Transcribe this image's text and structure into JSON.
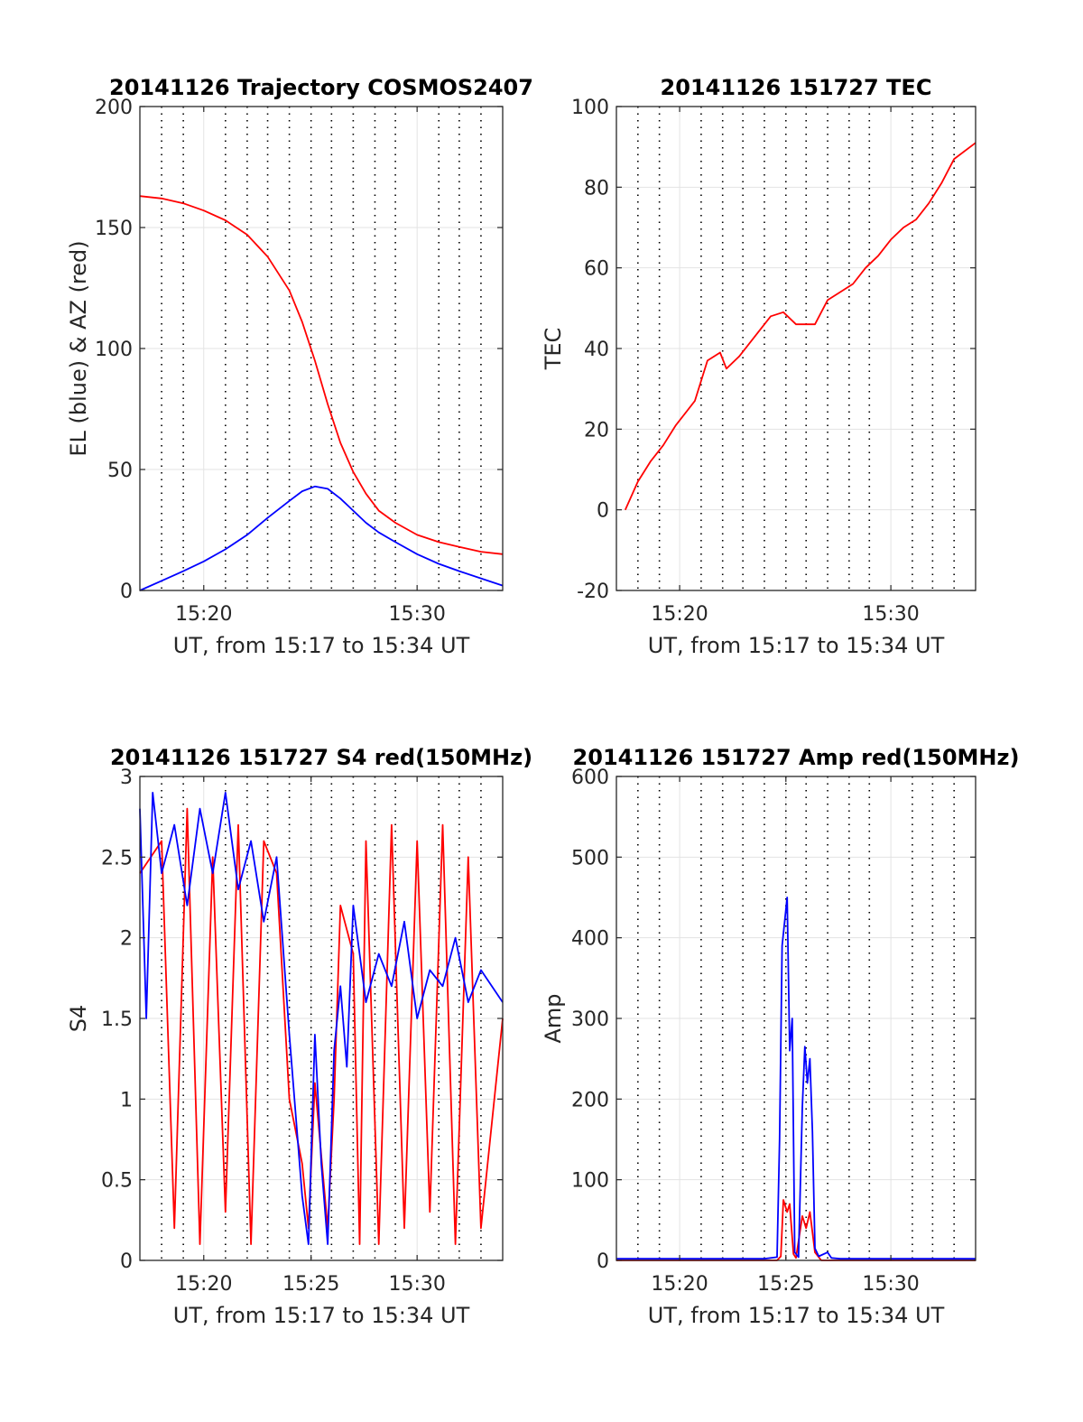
{
  "chart_data": [
    {
      "type": "line",
      "title": "20141126 Trajectory COSMOS2407",
      "xlabel": "UT, from 15:17 to 15:34 UT",
      "ylabel": "EL (blue) & AZ (red)",
      "xlim": [
        15.283,
        15.567
      ],
      "ylim": [
        0,
        200
      ],
      "xticks": [
        {
          "v": 15.333,
          "label": "15:20"
        },
        {
          "v": 15.5,
          "label": "15:30"
        }
      ],
      "yticks": [
        0,
        50,
        100,
        150,
        200
      ],
      "grid": true,
      "series": [
        {
          "color": "#ff0000",
          "x": [
            15.283,
            15.3,
            15.317,
            15.333,
            15.35,
            15.367,
            15.383,
            15.4,
            15.41,
            15.42,
            15.43,
            15.44,
            15.45,
            15.46,
            15.47,
            15.483,
            15.5,
            15.517,
            15.533,
            15.55,
            15.567
          ],
          "y": [
            163,
            162,
            160,
            157,
            153,
            147,
            138,
            124,
            111,
            95,
            77,
            61,
            49,
            40,
            33,
            28,
            23,
            20,
            18,
            16,
            15
          ]
        },
        {
          "color": "#0000ff",
          "x": [
            15.283,
            15.3,
            15.317,
            15.333,
            15.35,
            15.367,
            15.383,
            15.4,
            15.41,
            15.42,
            15.43,
            15.44,
            15.45,
            15.46,
            15.47,
            15.483,
            15.5,
            15.517,
            15.533,
            15.55,
            15.567
          ],
          "y": [
            0,
            4,
            8,
            12,
            17,
            23,
            30,
            37,
            41,
            43,
            42,
            38,
            33,
            28,
            24,
            20,
            15,
            11,
            8,
            5,
            2
          ]
        }
      ]
    },
    {
      "type": "line",
      "title": "20141126 151727 TEC",
      "xlabel": "UT, from 15:17 to 15:34 UT",
      "ylabel": "TEC",
      "xlim": [
        15.283,
        15.567
      ],
      "ylim": [
        -20,
        100
      ],
      "xticks": [
        {
          "v": 15.333,
          "label": "15:20"
        },
        {
          "v": 15.5,
          "label": "15:30"
        }
      ],
      "yticks": [
        -20,
        0,
        20,
        40,
        60,
        80,
        100
      ],
      "grid": true,
      "series": [
        {
          "color": "#ff0000",
          "x": [
            15.29,
            15.3,
            15.31,
            15.32,
            15.33,
            15.345,
            15.355,
            15.365,
            15.37,
            15.38,
            15.395,
            15.405,
            15.415,
            15.425,
            15.44,
            15.45,
            15.46,
            15.47,
            15.48,
            15.49,
            15.5,
            15.51,
            15.52,
            15.53,
            15.54,
            15.55,
            15.567
          ],
          "y": [
            0,
            7,
            12,
            16,
            21,
            27,
            37,
            39,
            35,
            38,
            44,
            48,
            49,
            46,
            46,
            52,
            54,
            56,
            60,
            63,
            67,
            70,
            72,
            76,
            81,
            87,
            91
          ]
        }
      ]
    },
    {
      "type": "line",
      "title": "20141126 151727 S4 red(150MHz)",
      "xlabel": "UT, from 15:17 to 15:34 UT",
      "ylabel": "S4",
      "xlim": [
        15.283,
        15.567
      ],
      "ylim": [
        0,
        3
      ],
      "xticks": [
        {
          "v": 15.333,
          "label": "15:20"
        },
        {
          "v": 15.417,
          "label": "15:25"
        },
        {
          "v": 15.5,
          "label": "15:30"
        }
      ],
      "yticks": [
        0,
        0.5,
        1,
        1.5,
        2,
        2.5,
        3
      ],
      "yticklabels": [
        "0",
        "0.5",
        "1",
        "1.5",
        "2",
        "2.5",
        "3"
      ],
      "grid": true,
      "series": [
        {
          "color": "#ff0000",
          "x": [
            15.283,
            15.3,
            15.31,
            15.32,
            15.33,
            15.34,
            15.35,
            15.36,
            15.37,
            15.38,
            15.39,
            15.4,
            15.41,
            15.415,
            15.42,
            15.43,
            15.435,
            15.44,
            15.45,
            15.455,
            15.46,
            15.47,
            15.48,
            15.49,
            15.5,
            15.51,
            15.52,
            15.53,
            15.54,
            15.55,
            15.567
          ],
          "y": [
            2.4,
            2.6,
            0.2,
            2.8,
            0.1,
            2.5,
            0.3,
            2.7,
            0.1,
            2.6,
            2.4,
            1.0,
            0.6,
            0.2,
            1.1,
            0.2,
            1.0,
            2.2,
            1.9,
            0.1,
            2.6,
            0.1,
            2.7,
            0.2,
            2.6,
            0.3,
            2.7,
            0.1,
            2.5,
            0.2,
            1.5
          ]
        },
        {
          "color": "#0000ff",
          "x": [
            15.283,
            15.288,
            15.293,
            15.3,
            15.31,
            15.32,
            15.33,
            15.34,
            15.35,
            15.36,
            15.37,
            15.38,
            15.39,
            15.4,
            15.405,
            15.41,
            15.415,
            15.42,
            15.425,
            15.43,
            15.435,
            15.44,
            15.445,
            15.45,
            15.46,
            15.47,
            15.48,
            15.49,
            15.5,
            15.51,
            15.52,
            15.53,
            15.54,
            15.55,
            15.567
          ],
          "y": [
            2.8,
            1.5,
            2.9,
            2.4,
            2.7,
            2.2,
            2.8,
            2.4,
            2.9,
            2.3,
            2.6,
            2.1,
            2.5,
            1.4,
            0.9,
            0.4,
            0.1,
            1.4,
            0.6,
            0.1,
            1.3,
            1.7,
            1.2,
            2.2,
            1.6,
            1.9,
            1.7,
            2.1,
            1.5,
            1.8,
            1.7,
            2.0,
            1.6,
            1.8,
            1.6
          ]
        }
      ]
    },
    {
      "type": "line",
      "title": "20141126 151727 Amp red(150MHz)",
      "xlabel": "UT, from 15:17 to 15:34 UT",
      "ylabel": "Amp",
      "xlim": [
        15.283,
        15.567
      ],
      "ylim": [
        0,
        600
      ],
      "xticks": [
        {
          "v": 15.333,
          "label": "15:20"
        },
        {
          "v": 15.417,
          "label": "15:25"
        },
        {
          "v": 15.5,
          "label": "15:30"
        }
      ],
      "yticks": [
        0,
        100,
        200,
        300,
        400,
        500,
        600
      ],
      "grid": true,
      "series": [
        {
          "color": "#ff0000",
          "x": [
            15.283,
            15.41,
            15.413,
            15.415,
            15.418,
            15.42,
            15.423,
            15.425,
            15.43,
            15.433,
            15.436,
            15.44,
            15.445,
            15.567
          ],
          "y": [
            0,
            0,
            5,
            75,
            60,
            70,
            8,
            3,
            55,
            40,
            60,
            10,
            0,
            0
          ]
        },
        {
          "color": "#0000ff",
          "x": [
            15.283,
            15.4,
            15.41,
            15.412,
            15.414,
            15.416,
            15.418,
            15.42,
            15.422,
            15.424,
            15.427,
            15.43,
            15.432,
            15.434,
            15.436,
            15.438,
            15.44,
            15.443,
            15.45,
            15.453,
            15.46,
            15.567
          ],
          "y": [
            2,
            2,
            4,
            150,
            390,
            420,
            450,
            260,
            300,
            10,
            4,
            190,
            265,
            220,
            250,
            160,
            15,
            5,
            10,
            3,
            2,
            2
          ]
        }
      ]
    }
  ]
}
